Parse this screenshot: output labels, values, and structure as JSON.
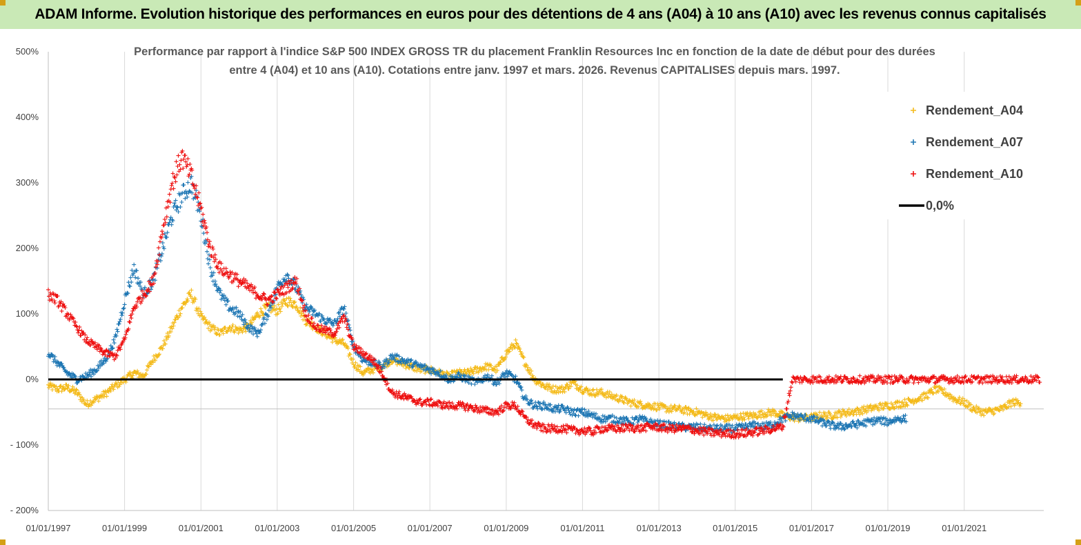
{
  "header": {
    "title": "ADAM Informe. Evolution historique des performances en euros pour des détentions de 4 ans (A04) à 10 ans (A10) avec les revenus connus capitalisés"
  },
  "colors": {
    "header_bg": "#c9e9b6",
    "A04": "#f4bb1c",
    "A07": "#1f77b4",
    "A10": "#ee1111",
    "zero_line": "#000000",
    "grid": "#d9d9d9"
  },
  "chart_data": {
    "type": "scatter",
    "title_lines": [
      "Performance par rapport à l'indice S&P 500 INDEX GROSS TR  du placement Franklin Resources Inc en fonction de la date de début pour des durées",
      "entre 4 (A04) et 10 ans (A10). Cotations entre janv. 1997 et mars. 2026. Revenus CAPITALISES depuis mars. 1997."
    ],
    "xlabel": "",
    "ylabel": "",
    "x_tick_labels": [
      "01/01/1997",
      "01/01/1999",
      "01/01/2001",
      "01/01/2003",
      "01/01/2005",
      "01/01/2007",
      "01/01/2009",
      "01/01/2011",
      "01/01/2013",
      "01/01/2015",
      "01/01/2017",
      "01/01/2019",
      "01/01/2021"
    ],
    "y_tick_labels": [
      "- 200%",
      "- 100%",
      "0%",
      "100%",
      "200%",
      "300%",
      "400%",
      "500%"
    ],
    "y_ticks": [
      -200,
      -100,
      0,
      100,
      200,
      300,
      400,
      500
    ],
    "xlim": [
      "1997-01-01",
      "2023-02-01"
    ],
    "ylim": [
      -200,
      500
    ],
    "grid": "vertical lines at each x tick; extra horizontal line at -45%",
    "legend_position": "top-right",
    "legend": [
      "Rendement_A04",
      "Rendement_A07",
      "Rendement_A10",
      "0,0%"
    ],
    "series": [
      {
        "name": "Rendement_A04",
        "color": "#f4bb1c",
        "marker": "+",
        "x": [
          "1997-01-01",
          "1997-04-01",
          "1997-07-01",
          "1997-10-01",
          "1998-01-01",
          "1998-04-01",
          "1998-07-01",
          "1998-10-01",
          "1999-01-01",
          "1999-04-01",
          "1999-07-01",
          "1999-10-01",
          "2000-01-01",
          "2000-04-01",
          "2000-07-01",
          "2000-10-01",
          "2001-01-01",
          "2001-04-01",
          "2001-07-01",
          "2001-10-01",
          "2002-01-01",
          "2002-04-01",
          "2002-07-01",
          "2002-10-01",
          "2003-01-01",
          "2003-04-01",
          "2003-07-01",
          "2003-10-01",
          "2004-01-01",
          "2004-04-01",
          "2004-07-01",
          "2004-10-01",
          "2005-01-01",
          "2005-04-01",
          "2005-07-01",
          "2005-10-01",
          "2006-01-01",
          "2006-04-01",
          "2006-07-01",
          "2006-10-01",
          "2007-01-01",
          "2007-04-01",
          "2007-07-01",
          "2007-10-01",
          "2008-01-01",
          "2008-04-01",
          "2008-07-01",
          "2008-10-01",
          "2009-01-01",
          "2009-04-01",
          "2009-07-01",
          "2009-10-01",
          "2010-01-01",
          "2010-04-01",
          "2010-07-01",
          "2010-10-01",
          "2011-01-01",
          "2011-04-01",
          "2011-07-01",
          "2011-10-01",
          "2012-01-01",
          "2012-04-01",
          "2012-07-01",
          "2012-10-01",
          "2013-01-01",
          "2013-04-01",
          "2013-07-01",
          "2013-10-01",
          "2014-01-01",
          "2014-04-01",
          "2014-07-01",
          "2014-10-01",
          "2015-01-01",
          "2015-04-01",
          "2015-07-01",
          "2015-10-01",
          "2016-01-01",
          "2016-04-01",
          "2016-07-01",
          "2016-10-01",
          "2017-01-01",
          "2017-04-01",
          "2017-07-01",
          "2017-10-01",
          "2018-01-01",
          "2018-04-01",
          "2018-07-01",
          "2018-10-01",
          "2019-01-01",
          "2019-04-01",
          "2019-07-01",
          "2019-10-01",
          "2020-01-01",
          "2020-04-01",
          "2020-07-01",
          "2020-10-01",
          "2021-01-01",
          "2021-04-01",
          "2021-07-01",
          "2021-10-01",
          "2022-01-01",
          "2022-04-01"
        ],
        "y": [
          -10,
          -15,
          -12,
          -20,
          -38,
          -30,
          -22,
          -10,
          0,
          10,
          5,
          30,
          50,
          80,
          110,
          130,
          95,
          80,
          70,
          80,
          75,
          80,
          100,
          110,
          105,
          120,
          115,
          90,
          80,
          70,
          60,
          55,
          25,
          10,
          15,
          20,
          30,
          25,
          20,
          15,
          15,
          10,
          5,
          10,
          10,
          15,
          20,
          15,
          40,
          55,
          25,
          0,
          -10,
          -15,
          -15,
          -5,
          -15,
          -20,
          -20,
          -25,
          -30,
          -35,
          -38,
          -40,
          -42,
          -45,
          -45,
          -48,
          -50,
          -55,
          -58,
          -60,
          -58,
          -56,
          -55,
          -52,
          -50,
          -55,
          -58,
          -60,
          -58,
          -55,
          -55,
          -52,
          -50,
          -48,
          -45,
          -42,
          -40,
          -38,
          -35,
          -30,
          -25,
          -15,
          -20,
          -30,
          -35,
          -45,
          -50,
          -48,
          -45,
          -35
        ]
      },
      {
        "name": "Rendement_A07",
        "color": "#1f77b4",
        "marker": "+",
        "x": [
          "1997-01-01",
          "1997-04-01",
          "1997-07-01",
          "1997-10-01",
          "1998-01-01",
          "1998-04-01",
          "1998-07-01",
          "1998-10-01",
          "1999-01-01",
          "1999-04-01",
          "1999-07-01",
          "1999-10-01",
          "2000-01-01",
          "2000-04-01",
          "2000-07-01",
          "2000-10-01",
          "2001-01-01",
          "2001-04-01",
          "2001-07-01",
          "2001-10-01",
          "2002-01-01",
          "2002-04-01",
          "2002-07-01",
          "2002-10-01",
          "2003-01-01",
          "2003-04-01",
          "2003-07-01",
          "2003-10-01",
          "2004-01-01",
          "2004-04-01",
          "2004-07-01",
          "2004-10-01",
          "2005-01-01",
          "2005-04-01",
          "2005-07-01",
          "2005-10-01",
          "2006-01-01",
          "2006-04-01",
          "2006-07-01",
          "2006-10-01",
          "2007-01-01",
          "2007-04-01",
          "2007-07-01",
          "2007-10-01",
          "2008-01-01",
          "2008-04-01",
          "2008-07-01",
          "2008-10-01",
          "2009-01-01",
          "2009-04-01",
          "2009-07-01",
          "2009-10-01",
          "2010-01-01",
          "2010-04-01",
          "2010-07-01",
          "2010-10-01",
          "2011-01-01",
          "2011-04-01",
          "2011-07-01",
          "2011-10-01",
          "2012-01-01",
          "2012-04-01",
          "2012-07-01",
          "2012-10-01",
          "2013-01-01",
          "2013-04-01",
          "2013-07-01",
          "2013-10-01",
          "2014-01-01",
          "2014-04-01",
          "2014-07-01",
          "2014-10-01",
          "2015-01-01",
          "2015-04-01",
          "2015-07-01",
          "2015-10-01",
          "2016-01-01",
          "2016-04-01",
          "2016-07-01",
          "2016-10-01",
          "2017-01-01",
          "2017-04-01",
          "2017-07-01",
          "2017-10-01",
          "2018-01-01",
          "2018-04-01",
          "2018-07-01",
          "2018-10-01",
          "2019-01-01",
          "2019-04-01"
        ],
        "y": [
          40,
          25,
          10,
          0,
          5,
          15,
          30,
          60,
          120,
          170,
          130,
          150,
          200,
          250,
          280,
          300,
          250,
          170,
          130,
          110,
          100,
          80,
          70,
          100,
          140,
          160,
          140,
          110,
          100,
          90,
          85,
          110,
          50,
          30,
          25,
          20,
          35,
          30,
          25,
          20,
          15,
          10,
          0,
          5,
          0,
          -5,
          5,
          -5,
          10,
          0,
          -30,
          -40,
          -40,
          -45,
          -45,
          -50,
          -50,
          -55,
          -60,
          -60,
          -62,
          -65,
          -60,
          -65,
          -68,
          -70,
          -72,
          -73,
          -73,
          -75,
          -75,
          -75,
          -75,
          -73,
          -70,
          -72,
          -68,
          -60,
          -55,
          -58,
          -60,
          -65,
          -70,
          -72,
          -70,
          -68,
          -65,
          -62,
          -65,
          -60
        ]
      },
      {
        "name": "Rendement_A10",
        "color": "#ee1111",
        "marker": "+",
        "x": [
          "1997-01-01",
          "1997-04-01",
          "1997-07-01",
          "1997-10-01",
          "1998-01-01",
          "1998-04-01",
          "1998-07-01",
          "1998-10-01",
          "1999-01-01",
          "1999-04-01",
          "1999-07-01",
          "1999-10-01",
          "2000-01-01",
          "2000-04-01",
          "2000-07-01",
          "2000-10-01",
          "2001-01-01",
          "2001-04-01",
          "2001-07-01",
          "2001-10-01",
          "2002-01-01",
          "2002-04-01",
          "2002-07-01",
          "2002-10-01",
          "2003-01-01",
          "2003-04-01",
          "2003-07-01",
          "2003-10-01",
          "2004-01-01",
          "2004-04-01",
          "2004-07-01",
          "2004-10-01",
          "2005-01-01",
          "2005-04-01",
          "2005-07-01",
          "2005-10-01",
          "2006-01-01",
          "2006-04-01",
          "2006-07-01",
          "2006-10-01",
          "2007-01-01",
          "2007-04-01",
          "2007-07-01",
          "2007-10-01",
          "2008-01-01",
          "2008-04-01",
          "2008-07-01",
          "2008-10-01",
          "2009-01-01",
          "2009-04-01",
          "2009-07-01",
          "2009-10-01",
          "2010-01-01",
          "2010-04-01",
          "2010-07-01",
          "2010-10-01",
          "2011-01-01",
          "2011-04-01",
          "2011-07-01",
          "2011-10-01",
          "2012-01-01",
          "2012-04-01",
          "2012-07-01",
          "2012-10-01",
          "2013-01-01",
          "2013-04-01",
          "2013-07-01",
          "2013-10-01",
          "2014-01-01",
          "2014-04-01",
          "2014-07-01",
          "2014-10-01",
          "2015-01-01",
          "2015-04-01",
          "2015-07-01",
          "2015-10-01",
          "2016-01-01",
          "2016-04-01",
          "2016-07-01",
          "2016-10-01",
          "2017-01-01",
          "2017-04-01",
          "2017-07-01",
          "2017-10-01",
          "2018-01-01",
          "2018-04-01",
          "2018-07-01",
          "2018-10-01",
          "2019-01-01",
          "2019-04-01",
          "2019-07-01",
          "2019-10-01",
          "2020-01-01",
          "2020-04-01",
          "2020-07-01",
          "2020-10-01",
          "2021-01-01",
          "2021-04-01",
          "2021-07-01",
          "2021-10-01",
          "2022-01-01",
          "2022-04-01",
          "2022-07-01",
          "2022-10-01"
        ],
        "y": [
          130,
          120,
          100,
          80,
          60,
          50,
          40,
          35,
          60,
          110,
          130,
          150,
          230,
          300,
          340,
          310,
          260,
          200,
          170,
          160,
          150,
          140,
          130,
          120,
          130,
          140,
          150,
          100,
          80,
          75,
          70,
          95,
          50,
          40,
          30,
          10,
          -20,
          -25,
          -30,
          -35,
          -35,
          -38,
          -40,
          -40,
          -42,
          -45,
          -48,
          -50,
          -40,
          -40,
          -60,
          -70,
          -75,
          -75,
          -75,
          -78,
          -78,
          -80,
          -75,
          -75,
          -75,
          -73,
          -75,
          -72,
          -73,
          -75,
          -75,
          -75,
          -78,
          -80,
          -82,
          -82,
          -83,
          -82,
          -80,
          -78,
          -75,
          -72,
          0,
          0,
          0,
          0,
          0,
          0,
          0,
          0,
          0,
          0,
          0,
          0,
          0,
          0,
          0,
          0,
          0,
          0,
          0,
          0,
          0,
          0,
          0,
          0,
          0,
          0
        ]
      }
    ],
    "reference_line": {
      "name": "0,0%",
      "y": 0
    }
  }
}
